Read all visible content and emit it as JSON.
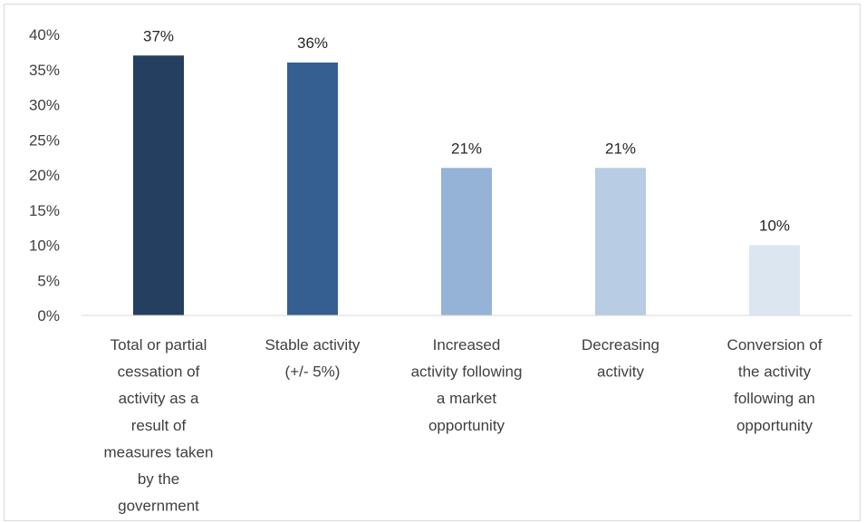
{
  "chart_data": {
    "type": "bar",
    "categories": [
      [
        "Total or partial",
        "cessation of",
        "activity as a",
        "result of",
        "measures taken",
        "by the",
        "government"
      ],
      [
        "Stable activity",
        "(+/- 5%)"
      ],
      [
        "Increased",
        "activity following",
        "a market",
        "opportunity"
      ],
      [
        "Decreasing",
        "activity"
      ],
      [
        "Conversion of",
        "the activity",
        "following an",
        "opportunity"
      ]
    ],
    "values": [
      37,
      36,
      21,
      21,
      10
    ],
    "data_labels": [
      "37%",
      "36%",
      "21%",
      "21%",
      "10%"
    ],
    "bar_colors": [
      "#243f60",
      "#355f91",
      "#95b3d7",
      "#b8cce4",
      "#dce6f1"
    ],
    "ylim": [
      0,
      40
    ],
    "yticks": [
      0,
      5,
      10,
      15,
      20,
      25,
      30,
      35,
      40
    ],
    "ytick_labels": [
      "0%",
      "5%",
      "10%",
      "15%",
      "20%",
      "25%",
      "30%",
      "35%",
      "40%"
    ],
    "title": "",
    "xlabel": "",
    "ylabel": "",
    "grid": false,
    "axis_color": "#d9d9d9"
  }
}
